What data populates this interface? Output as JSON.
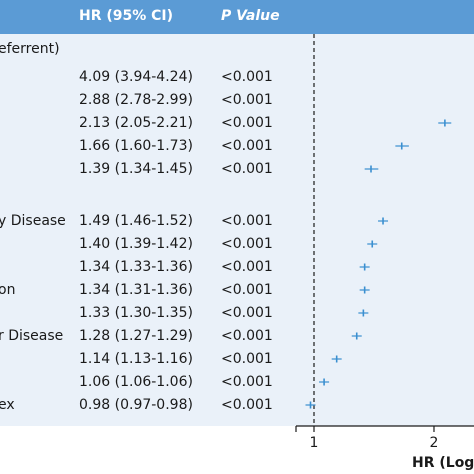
{
  "theme": {
    "header_bg": "#5b9bd5",
    "panel_bg": "#eaf1f9",
    "marker_color": "#3a8fd0"
  },
  "header": {
    "col_hr": "HR (95% CI)",
    "col_p": "P Value"
  },
  "groups": [
    {
      "label": "eferrent)"
    }
  ],
  "rows": [
    {
      "label": "",
      "ci_text": "4.09 (3.94-4.24)",
      "p_text": "<0.001"
    },
    {
      "label": "",
      "ci_text": "2.88 (2.78-2.99)",
      "p_text": "<0.001"
    },
    {
      "label": "",
      "ci_text": "2.13 (2.05-2.21)",
      "p_text": "<0.001"
    },
    {
      "label": "",
      "ci_text": "1.66 (1.60-1.73)",
      "p_text": "<0.001"
    },
    {
      "label": "",
      "ci_text": "1.39 (1.34-1.45)",
      "p_text": "<0.001"
    },
    {
      "label": "y Disease",
      "ci_text": "1.49 (1.46-1.52)",
      "p_text": "<0.001"
    },
    {
      "label": "",
      "ci_text": "1.40 (1.39-1.42)",
      "p_text": "<0.001"
    },
    {
      "label": "",
      "ci_text": "1.34 (1.33-1.36)",
      "p_text": "<0.001"
    },
    {
      "label": "on",
      "ci_text": "1.34 (1.31-1.36)",
      "p_text": "<0.001"
    },
    {
      "label": "",
      "ci_text": "1.33 (1.30-1.35)",
      "p_text": "<0.001"
    },
    {
      "label": "r Disease",
      "ci_text": "1.28 (1.27-1.29)",
      "p_text": "<0.001"
    },
    {
      "label": "",
      "ci_text": "1.14 (1.13-1.16)",
      "p_text": "<0.001"
    },
    {
      "label": "",
      "ci_text": "1.06 (1.06-1.06)",
      "p_text": "<0.001"
    },
    {
      "label": "ex",
      "ci_text": "0.98 (0.97-0.98)",
      "p_text": "<0.001"
    }
  ],
  "chart_data": {
    "type": "scatter",
    "xlabel": "HR (Log)",
    "x_scale": "log",
    "reference_line": 1,
    "ticks": [
      1,
      2
    ],
    "x_visible_range": [
      0.97,
      2.25
    ],
    "points": [
      {
        "hr": 4.09,
        "lo": 3.94,
        "hi": 4.24
      },
      {
        "hr": 2.88,
        "lo": 2.78,
        "hi": 2.99
      },
      {
        "hr": 2.13,
        "lo": 2.05,
        "hi": 2.21
      },
      {
        "hr": 1.66,
        "lo": 1.6,
        "hi": 1.73
      },
      {
        "hr": 1.39,
        "lo": 1.34,
        "hi": 1.45
      },
      {
        "hr": 1.49,
        "lo": 1.46,
        "hi": 1.52
      },
      {
        "hr": 1.4,
        "lo": 1.39,
        "hi": 1.42
      },
      {
        "hr": 1.34,
        "lo": 1.33,
        "hi": 1.36
      },
      {
        "hr": 1.34,
        "lo": 1.31,
        "hi": 1.36
      },
      {
        "hr": 1.33,
        "lo": 1.3,
        "hi": 1.35
      },
      {
        "hr": 1.28,
        "lo": 1.27,
        "hi": 1.29
      },
      {
        "hr": 1.14,
        "lo": 1.13,
        "hi": 1.16
      },
      {
        "hr": 1.06,
        "lo": 1.06,
        "hi": 1.06
      },
      {
        "hr": 0.98,
        "lo": 0.97,
        "hi": 0.98
      }
    ]
  }
}
